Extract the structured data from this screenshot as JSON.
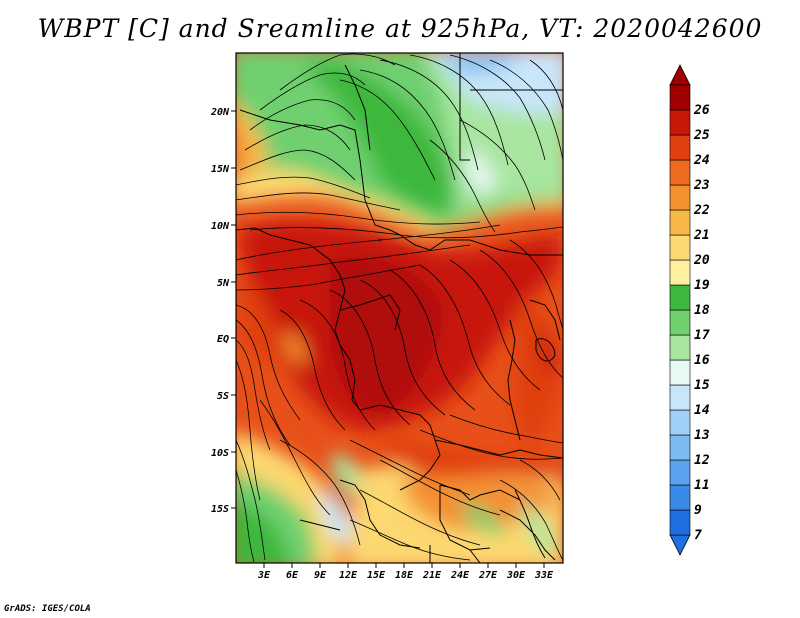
{
  "title": "WBPT [C] and Sreamline at 925hPa, VT: 2020042600",
  "lat_labels": [
    "20N",
    "15N",
    "10N",
    "5N",
    "EQ",
    "5S",
    "10S",
    "15S"
  ],
  "lon_labels": [
    "3E",
    "6E",
    "9E",
    "12E",
    "15E",
    "18E",
    "21E",
    "24E",
    "27E",
    "30E",
    "33E"
  ],
  "colorbar": {
    "labels": [
      "7",
      "9",
      "11",
      "12",
      "13",
      "14",
      "15",
      "16",
      "17",
      "18",
      "19",
      "20",
      "21",
      "22",
      "23",
      "24",
      "25",
      "26"
    ],
    "colors": [
      "#1f6fe0",
      "#3a8ae8",
      "#5aa2ee",
      "#7cbaf2",
      "#a0d0f6",
      "#c8e6fa",
      "#e8f8f4",
      "#a8e6a0",
      "#70d070",
      "#3cb83c",
      "#fff0a0",
      "#fcd870",
      "#f8b848",
      "#f49030",
      "#ee6a1e",
      "#e04010",
      "#c81808",
      "#a00000"
    ]
  },
  "credit": "GrADS: IGES/COLA"
}
